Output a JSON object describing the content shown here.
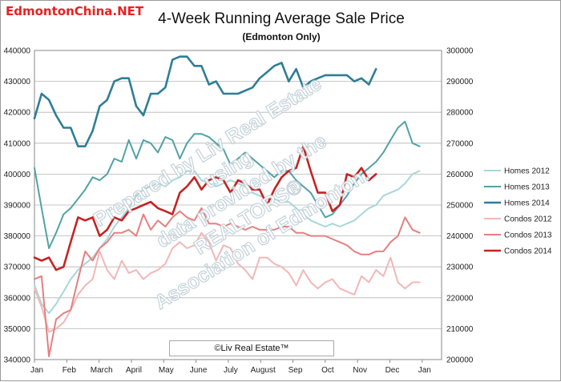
{
  "brand": {
    "text": "EdmontonChina.NET",
    "color": "#e8211f"
  },
  "chart_data": {
    "type": "line",
    "title": "4-Week Running Average Sale Price",
    "subtitle": "(Edmonton Only)",
    "xlabel": "",
    "ylabel": "",
    "credit": "©Liv Real Estate™",
    "watermark": [
      "Prepared by Liv Real Estate",
      "using",
      "data provided by the",
      "REALTORS®",
      "Association of Edmonton."
    ],
    "x_domain": [
      0,
      12.6
    ],
    "x_ticks": [
      {
        "label": "Jan",
        "x": 0
      },
      {
        "label": "Feb",
        "x": 1
      },
      {
        "label": "March",
        "x": 2
      },
      {
        "label": "April",
        "x": 3
      },
      {
        "label": "May",
        "x": 4
      },
      {
        "label": "June",
        "x": 5
      },
      {
        "label": "July",
        "x": 6
      },
      {
        "label": "August",
        "x": 7
      },
      {
        "label": "Sep",
        "x": 8
      },
      {
        "label": "Oct",
        "x": 9
      },
      {
        "label": "Nov",
        "x": 10
      },
      {
        "label": "Dec",
        "x": 11
      },
      {
        "label": "Jan",
        "x": 12
      }
    ],
    "y_left": {
      "min": 340000,
      "max": 440000,
      "ticks": [
        "340000",
        "350000",
        "360000",
        "370000",
        "380000",
        "390000",
        "400000",
        "410000",
        "420000",
        "430000",
        "440000"
      ]
    },
    "y_right": {
      "min": 200000,
      "max": 300000,
      "ticks": [
        "200000",
        "210000",
        "220000",
        "230000",
        "240000",
        "250000",
        "260000",
        "270000",
        "280000",
        "290000",
        "300000"
      ]
    },
    "grid": true,
    "legend_position": "right",
    "series": [
      {
        "name": "Homes 2012",
        "axis": "left",
        "color": "#a8d6d9",
        "width": 2,
        "x": [
          0,
          0.22,
          0.45,
          0.67,
          0.9,
          1.12,
          1.35,
          1.57,
          1.8,
          2.02,
          2.25,
          2.47,
          2.7,
          2.92,
          3.15,
          3.37,
          3.6,
          3.82,
          4.05,
          4.27,
          4.5,
          4.72,
          4.95,
          5.17,
          5.4,
          5.62,
          5.85,
          6.07,
          6.3,
          6.52,
          6.75,
          6.97,
          7.2,
          7.42,
          7.65,
          7.87,
          8.1,
          8.32,
          8.55,
          8.77,
          9,
          9.22,
          9.45,
          9.67,
          9.9,
          10.12,
          10.35,
          10.57,
          10.8,
          11.02,
          11.25,
          11.47,
          11.7,
          11.92
        ],
        "y": [
          364000,
          358000,
          355000,
          358000,
          362000,
          366000,
          369000,
          371000,
          373000,
          376000,
          379000,
          383000,
          386000,
          389000,
          393000,
          395000,
          396000,
          397000,
          396000,
          398000,
          399000,
          401000,
          401000,
          398000,
          397000,
          396000,
          397000,
          398000,
          397000,
          396000,
          394000,
          393000,
          392000,
          392000,
          391000,
          391000,
          389000,
          387000,
          385000,
          384000,
          383000,
          384000,
          383000,
          384000,
          385000,
          387000,
          389000,
          390000,
          393000,
          394000,
          395000,
          397000,
          400000,
          401000
        ]
      },
      {
        "name": "Homes 2013",
        "axis": "left",
        "color": "#52a2a6",
        "width": 2,
        "x": [
          0,
          0.22,
          0.45,
          0.67,
          0.9,
          1.12,
          1.35,
          1.57,
          1.8,
          2.02,
          2.25,
          2.47,
          2.7,
          2.92,
          3.15,
          3.37,
          3.6,
          3.82,
          4.05,
          4.27,
          4.5,
          4.72,
          4.95,
          5.17,
          5.4,
          5.62,
          5.85,
          6.07,
          6.3,
          6.52,
          6.75,
          6.97,
          7.2,
          7.42,
          7.65,
          7.87,
          8.1,
          8.32,
          8.55,
          8.77,
          9,
          9.22,
          9.45,
          9.67,
          9.9,
          10.12,
          10.35,
          10.57,
          10.8,
          11.02,
          11.25,
          11.47,
          11.7,
          11.92
        ],
        "y": [
          402000,
          389000,
          376000,
          381000,
          387000,
          389000,
          392000,
          395000,
          399000,
          398000,
          400000,
          405000,
          404000,
          411000,
          405000,
          411000,
          410000,
          407000,
          412000,
          411000,
          405000,
          410000,
          413000,
          413000,
          412000,
          410000,
          408000,
          403000,
          405000,
          407000,
          405000,
          403000,
          401000,
          399000,
          401000,
          401000,
          398000,
          396000,
          394000,
          390000,
          386000,
          387000,
          390000,
          393000,
          397000,
          400000,
          402000,
          404000,
          407000,
          411000,
          415000,
          417000,
          410000,
          409000
        ]
      },
      {
        "name": "Homes 2014",
        "axis": "left",
        "color": "#2e7e96",
        "width": 2.6,
        "x": [
          0,
          0.22,
          0.45,
          0.67,
          0.9,
          1.12,
          1.35,
          1.57,
          1.8,
          2.02,
          2.25,
          2.47,
          2.7,
          2.92,
          3.15,
          3.37,
          3.6,
          3.82,
          4.05,
          4.27,
          4.5,
          4.72,
          4.95,
          5.17,
          5.4,
          5.62,
          5.85,
          6.07,
          6.3,
          6.52,
          6.75,
          6.97,
          7.2,
          7.42,
          7.65,
          7.87,
          8.1,
          8.32,
          8.55,
          8.77,
          9,
          9.22,
          9.45,
          9.67,
          9.9,
          10.12,
          10.35,
          10.57
        ],
        "y": [
          418000,
          426000,
          424000,
          419000,
          415000,
          415000,
          409000,
          409000,
          414000,
          422000,
          424000,
          430000,
          431000,
          431000,
          422000,
          419000,
          426000,
          426000,
          428000,
          437000,
          438000,
          438000,
          435000,
          435000,
          429000,
          430000,
          426000,
          426000,
          426000,
          427000,
          428000,
          431000,
          433000,
          435000,
          436000,
          430000,
          434000,
          428000,
          430000,
          431000,
          432000,
          432000,
          432000,
          432000,
          430000,
          431000,
          429000,
          434000
        ]
      },
      {
        "name": "Condos 2012",
        "axis": "right",
        "color": "#f2b7b7",
        "width": 2,
        "x": [
          0,
          0.22,
          0.45,
          0.67,
          0.9,
          1.12,
          1.35,
          1.57,
          1.8,
          2.02,
          2.25,
          2.47,
          2.7,
          2.92,
          3.15,
          3.37,
          3.6,
          3.82,
          4.05,
          4.27,
          4.5,
          4.72,
          4.95,
          5.17,
          5.4,
          5.62,
          5.85,
          6.07,
          6.3,
          6.52,
          6.75,
          6.97,
          7.2,
          7.42,
          7.65,
          7.87,
          8.1,
          8.32,
          8.55,
          8.77,
          9,
          9.22,
          9.45,
          9.67,
          9.9,
          10.12,
          10.35,
          10.57,
          10.8,
          11.02,
          11.25,
          11.47,
          11.7,
          11.92
        ],
        "y": [
          223000,
          217000,
          209000,
          210000,
          212000,
          216000,
          221000,
          224000,
          226000,
          235000,
          229000,
          226000,
          232000,
          228000,
          229000,
          226000,
          228000,
          229000,
          231000,
          236000,
          238000,
          236000,
          237000,
          241000,
          238000,
          232000,
          237000,
          236000,
          231000,
          229000,
          226000,
          233000,
          233000,
          231000,
          230000,
          228000,
          224000,
          229000,
          225000,
          223000,
          225000,
          226000,
          223000,
          222000,
          221000,
          227000,
          225000,
          229000,
          227000,
          233000,
          225000,
          223000,
          225000,
          225000
        ]
      },
      {
        "name": "Condos 2013",
        "axis": "right",
        "color": "#e58080",
        "width": 2,
        "x": [
          0,
          0.22,
          0.45,
          0.67,
          0.9,
          1.12,
          1.35,
          1.57,
          1.8,
          2.02,
          2.25,
          2.47,
          2.7,
          2.92,
          3.15,
          3.37,
          3.6,
          3.82,
          4.05,
          4.27,
          4.5,
          4.72,
          4.95,
          5.17,
          5.4,
          5.62,
          5.85,
          6.07,
          6.3,
          6.52,
          6.75,
          6.97,
          7.2,
          7.42,
          7.65,
          7.87,
          8.1,
          8.32,
          8.55,
          8.77,
          9,
          9.22,
          9.45,
          9.67,
          9.9,
          10.12,
          10.35,
          10.57,
          10.8,
          11.02,
          11.25,
          11.47,
          11.7,
          11.92
        ],
        "y": [
          226000,
          227000,
          201000,
          213000,
          215000,
          216000,
          226000,
          235000,
          232000,
          236000,
          238000,
          241000,
          241000,
          242000,
          240000,
          247000,
          242000,
          245000,
          243000,
          246000,
          248000,
          246000,
          245000,
          249000,
          244000,
          244000,
          243000,
          244000,
          243000,
          242000,
          243000,
          242000,
          242000,
          242000,
          243000,
          243000,
          241000,
          241000,
          240000,
          240000,
          240000,
          239000,
          238000,
          237000,
          235000,
          234000,
          234000,
          235000,
          235000,
          238000,
          240000,
          246000,
          242000,
          241000
        ]
      },
      {
        "name": "Condos 2014",
        "axis": "right",
        "color": "#c42424",
        "width": 2.6,
        "x": [
          0,
          0.22,
          0.45,
          0.67,
          0.9,
          1.12,
          1.35,
          1.57,
          1.8,
          2.02,
          2.25,
          2.47,
          2.7,
          2.92,
          3.15,
          3.37,
          3.6,
          3.82,
          4.05,
          4.27,
          4.5,
          4.72,
          4.95,
          5.17,
          5.4,
          5.62,
          5.85,
          6.07,
          6.3,
          6.52,
          6.75,
          6.97,
          7.2,
          7.42,
          7.65,
          7.87,
          8.1,
          8.32,
          8.55,
          8.77,
          9,
          9.22,
          9.45,
          9.67,
          9.9,
          10.12,
          10.35,
          10.57
        ],
        "y": [
          233000,
          232000,
          233000,
          229000,
          230000,
          238000,
          246000,
          245000,
          246000,
          240000,
          242000,
          246000,
          245000,
          248000,
          249000,
          250000,
          251000,
          249000,
          248000,
          247000,
          254000,
          256000,
          259000,
          255000,
          258000,
          259000,
          258000,
          254000,
          258000,
          257000,
          255000,
          255000,
          250000,
          255000,
          259000,
          261000,
          262000,
          269000,
          261000,
          254000,
          254000,
          248000,
          250000,
          260000,
          259000,
          262000,
          258000,
          260000
        ]
      }
    ]
  }
}
